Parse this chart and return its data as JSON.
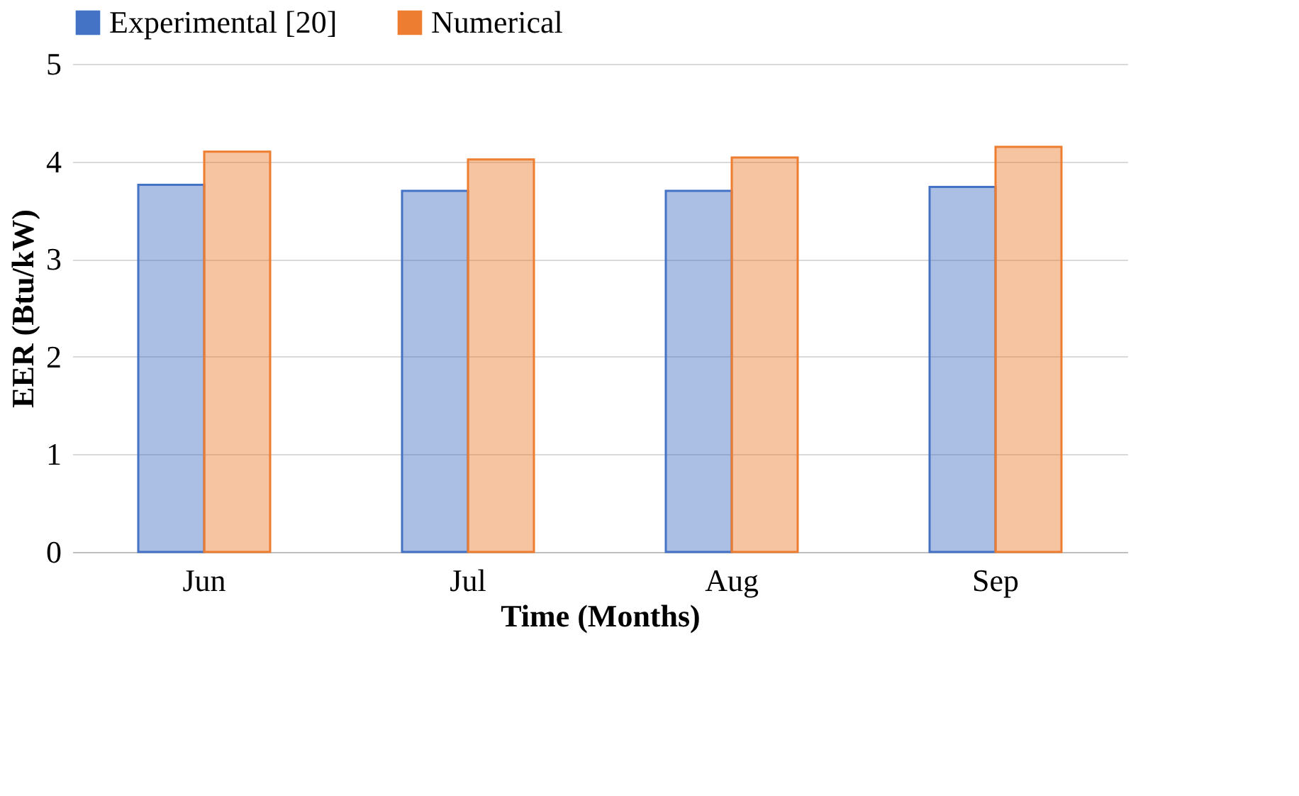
{
  "chart_data": {
    "type": "bar",
    "xlabel": "Time (Months)",
    "ylabel": "EER (Btu/kW)",
    "categories": [
      "Jun",
      "Jul",
      "Aug",
      "Sep"
    ],
    "series": [
      {
        "name": "Experimental [20]",
        "color": "#4472c4",
        "values": [
          3.76,
          3.7,
          3.7,
          3.74
        ]
      },
      {
        "name": "Numerical",
        "color": "#ed7d31",
        "values": [
          4.1,
          4.02,
          4.04,
          4.15
        ]
      }
    ],
    "ylim": [
      0,
      5
    ],
    "yticks": [
      0,
      1,
      2,
      3,
      4,
      5
    ],
    "grid": "y",
    "legend": "top"
  }
}
